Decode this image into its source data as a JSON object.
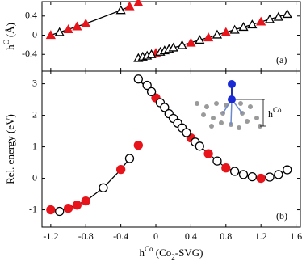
{
  "chart_data": [
    {
      "type": "scatter",
      "ylabel": [
        "h",
        "C",
        " (Å)"
      ],
      "panel_label": "(a)",
      "xlim": [
        -1.3,
        1.65
      ],
      "xticks": [
        -1.2,
        -0.8,
        -0.4,
        0,
        0.4,
        0.8,
        1.2,
        1.6
      ],
      "ylim": [
        -0.75,
        0.7
      ],
      "yticks": [
        0.4,
        0,
        -0.4
      ],
      "series": [
        {
          "marker": "triangle",
          "filled": true,
          "color": "#e8141b",
          "x": [
            -1.2,
            -1.0,
            -0.9,
            -0.8,
            -0.3,
            -0.2,
            0,
            0.4,
            0.6,
            0.8,
            1.2
          ],
          "values": [
            0,
            0.12,
            0.18,
            0.24,
            0.6,
            0.68,
            -0.37,
            -0.16,
            -0.05,
            0.06,
            0.28
          ]
        },
        {
          "marker": "triangle",
          "filled": false,
          "color": "#000000",
          "x": [
            -1.1,
            -0.4,
            -0.2,
            -0.15,
            -0.1,
            -0.05,
            0.05,
            0.1,
            0.15,
            0.2,
            0.3,
            0.5,
            0.7,
            0.9,
            1.0,
            1.1,
            1.3,
            1.4,
            1.5
          ],
          "values": [
            0.06,
            0.52,
            -0.48,
            -0.45,
            -0.43,
            -0.4,
            -0.35,
            -0.32,
            -0.29,
            -0.26,
            -0.21,
            -0.1,
            0.01,
            0.11,
            0.17,
            0.22,
            0.33,
            0.38,
            0.44
          ]
        }
      ],
      "fits": [
        {
          "x": [
            -1.2,
            -0.8,
            -0.4,
            -0.3
          ],
          "values": [
            0,
            0.24,
            0.52,
            0.6
          ]
        },
        {
          "x": [
            -0.2,
            1.5
          ],
          "values": [
            -0.48,
            0.44
          ]
        }
      ]
    },
    {
      "type": "scatter",
      "ylabel": [
        "Rel. energy (eV)"
      ],
      "xlabel": [
        "h",
        "Co",
        " (Co",
        "2",
        "-SVG)"
      ],
      "panel_label": "(b)",
      "annotation": [
        "h",
        "Co"
      ],
      "xlim": [
        -1.3,
        1.65
      ],
      "xticks": [
        -1.2,
        -0.8,
        -0.4,
        0,
        0.4,
        0.8,
        1.2,
        1.6
      ],
      "ylim": [
        -1.55,
        3.4
      ],
      "yticks": [
        3,
        2,
        1,
        0,
        -1
      ],
      "series": [
        {
          "marker": "circle",
          "filled": true,
          "color": "#e8141b",
          "x": [
            -1.2,
            -1.0,
            -0.9,
            -0.8,
            -0.4,
            -0.2,
            0,
            0.4,
            0.6,
            0.8,
            1.2
          ],
          "values": [
            -1.0,
            -0.95,
            -0.85,
            -0.72,
            0.28,
            1.05,
            2.55,
            1.28,
            0.78,
            0.33,
            0.0
          ]
        },
        {
          "marker": "circle",
          "filled": false,
          "color": "#000000",
          "x": [
            -1.1,
            -0.6,
            -0.3,
            -0.2,
            -0.1,
            -0.05,
            0.05,
            0.1,
            0.15,
            0.2,
            0.25,
            0.3,
            0.35,
            0.45,
            0.5,
            0.7,
            0.9,
            1.0,
            1.1,
            1.3,
            1.4,
            1.5
          ],
          "values": [
            -1.05,
            -0.3,
            0.63,
            3.15,
            2.95,
            2.75,
            2.4,
            2.25,
            2.05,
            1.9,
            1.75,
            1.6,
            1.45,
            1.15,
            1.02,
            0.55,
            0.22,
            0.12,
            0.05,
            0.04,
            0.12,
            0.27
          ]
        }
      ],
      "fits": [
        {
          "x": [
            -1.1,
            -1.0,
            -0.8,
            -0.6,
            -0.4,
            -0.3
          ],
          "values": [
            -1.05,
            -0.95,
            -0.72,
            -0.3,
            0.28,
            0.63
          ]
        },
        {
          "x": [
            -0.2,
            0,
            0.2,
            0.4,
            0.6,
            0.8,
            1.0,
            1.2,
            1.4,
            1.5
          ],
          "values": [
            3.15,
            2.55,
            1.9,
            1.28,
            0.78,
            0.33,
            0.12,
            0.0,
            0.12,
            0.27
          ]
        }
      ]
    }
  ]
}
